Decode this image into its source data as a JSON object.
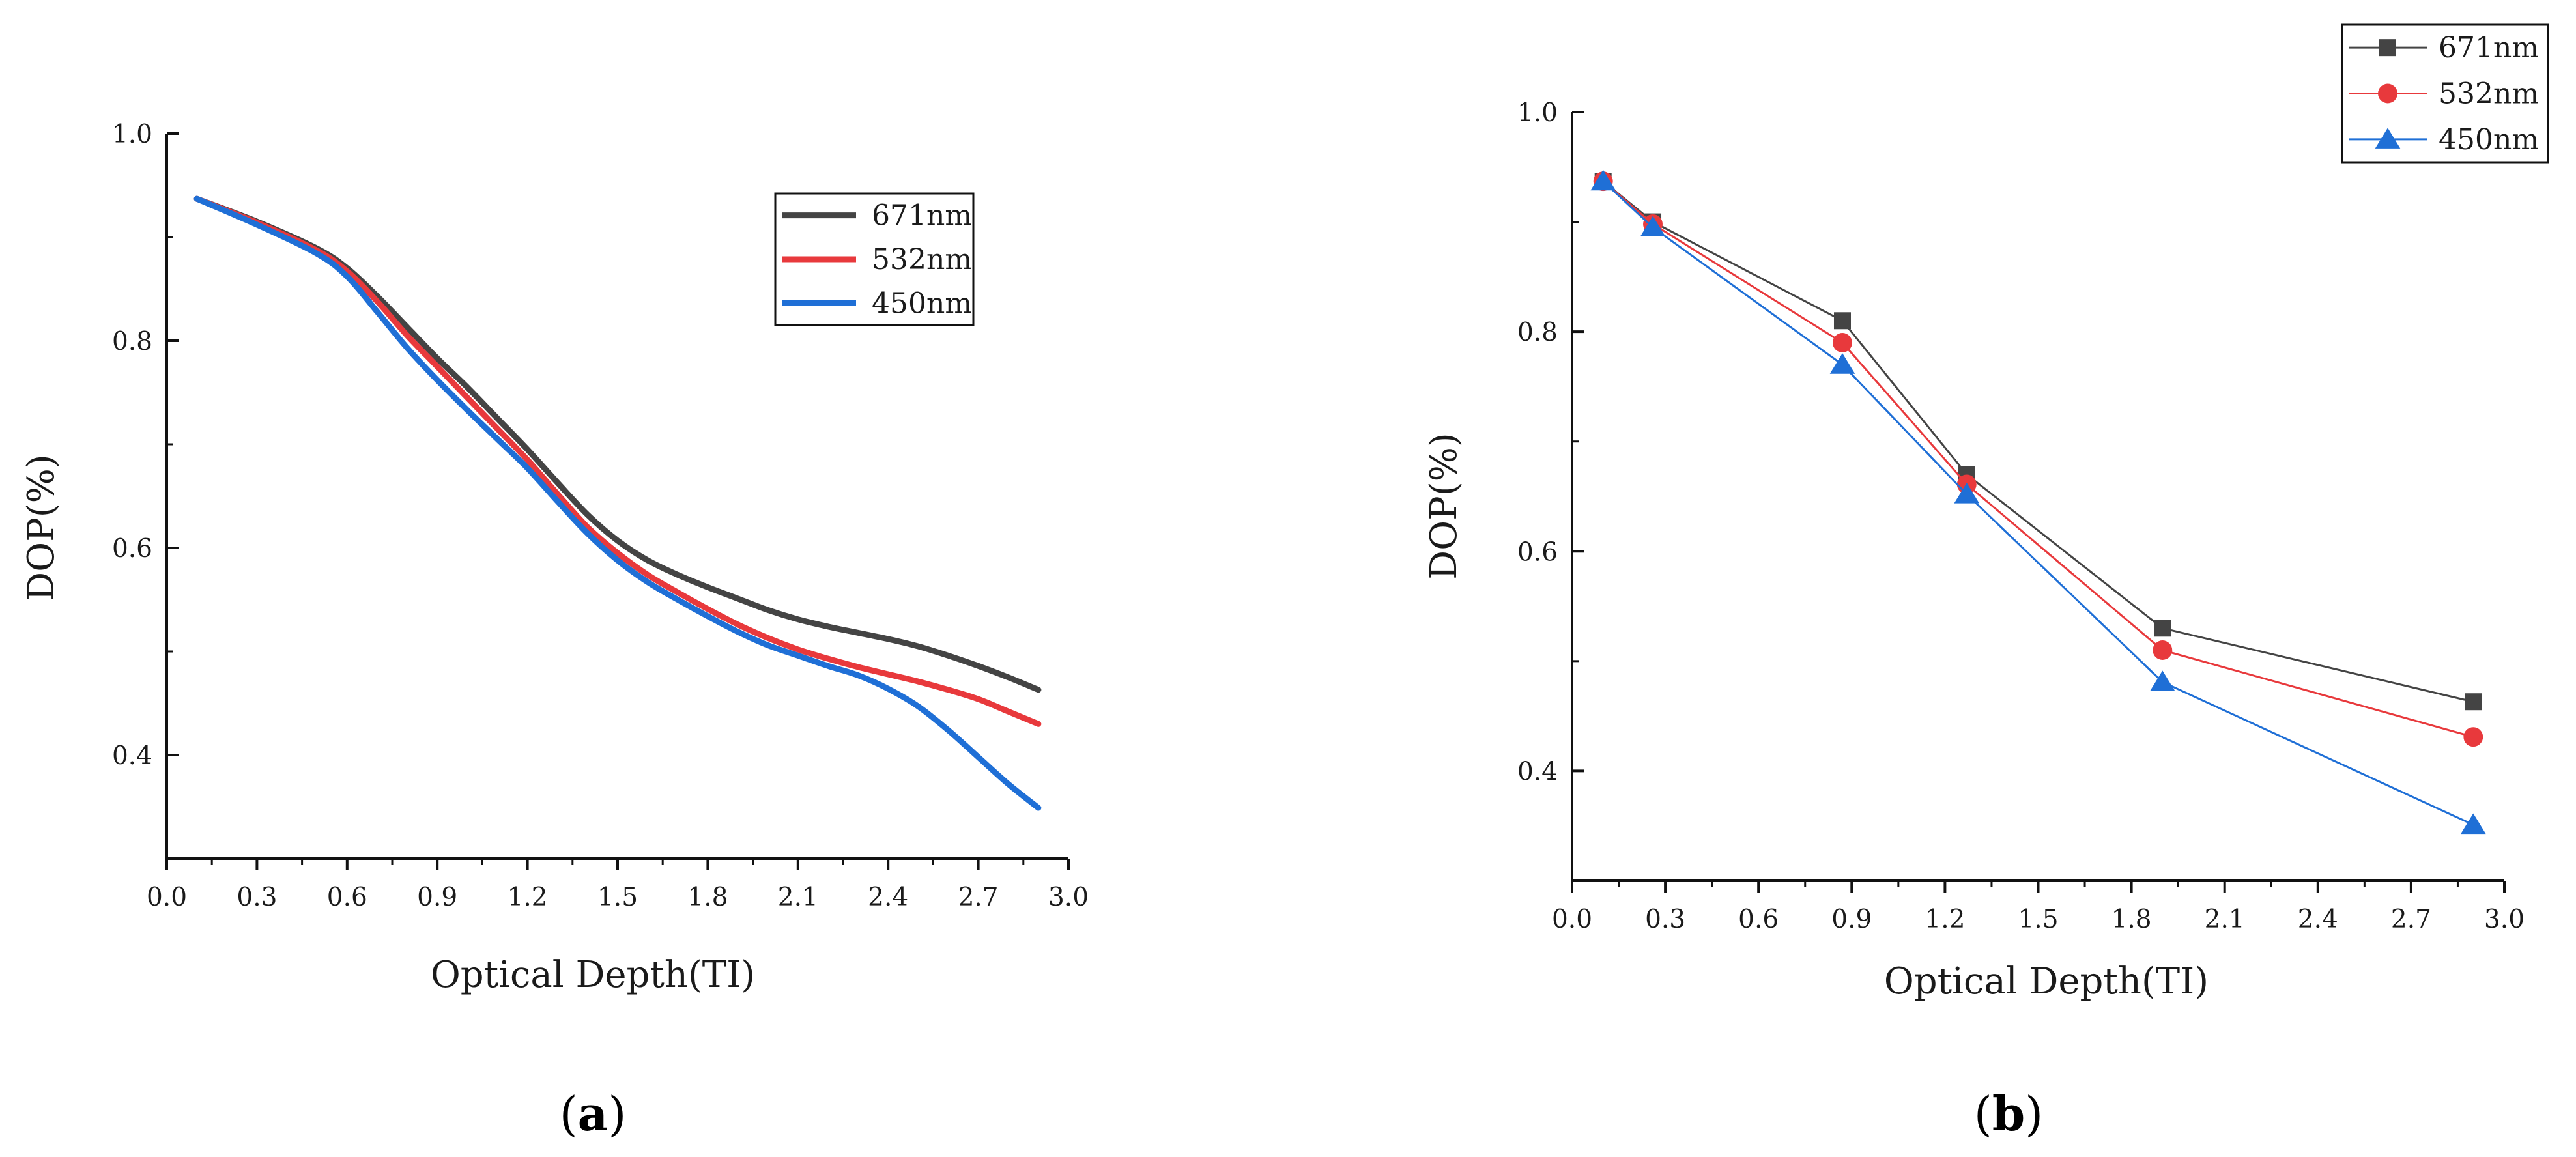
{
  "chart_data": [
    {
      "panel": "(a)",
      "panel_open": "(",
      "panel_letter": "a",
      "panel_close": ")",
      "type": "line",
      "style": "smooth",
      "title": "",
      "xlabel": "Optical Depth(TI)",
      "ylabel": "DOP(%)",
      "xlim": [
        0.0,
        3.0
      ],
      "ylim": [
        0.3,
        1.0
      ],
      "xticks": [
        "0.0",
        "0.3",
        "0.6",
        "0.9",
        "1.2",
        "1.5",
        "1.8",
        "2.1",
        "2.4",
        "2.7",
        "3.0"
      ],
      "yticks": [
        "0.4",
        "0.6",
        "0.8",
        "1.0"
      ],
      "legend_position": "top-right",
      "series": [
        {
          "name": "671nm",
          "color": "#444444",
          "x": [
            0.1,
            0.3,
            0.5,
            0.6,
            0.7,
            0.8,
            0.9,
            1.0,
            1.1,
            1.2,
            1.3,
            1.4,
            1.5,
            1.6,
            1.7,
            1.8,
            1.9,
            2.0,
            2.1,
            2.2,
            2.3,
            2.4,
            2.5,
            2.6,
            2.7,
            2.8,
            2.9
          ],
          "values": [
            0.937,
            0.915,
            0.889,
            0.87,
            0.843,
            0.813,
            0.783,
            0.755,
            0.725,
            0.695,
            0.663,
            0.632,
            0.607,
            0.588,
            0.574,
            0.562,
            0.551,
            0.54,
            0.531,
            0.524,
            0.518,
            0.512,
            0.505,
            0.496,
            0.486,
            0.475,
            0.463
          ]
        },
        {
          "name": "532nm",
          "color": "#e8393c",
          "x": [
            0.1,
            0.3,
            0.5,
            0.6,
            0.7,
            0.8,
            0.9,
            1.0,
            1.1,
            1.2,
            1.3,
            1.4,
            1.5,
            1.6,
            1.7,
            1.8,
            1.9,
            2.0,
            2.1,
            2.2,
            2.3,
            2.4,
            2.5,
            2.6,
            2.7,
            2.8,
            2.9
          ],
          "values": [
            0.937,
            0.914,
            0.887,
            0.867,
            0.838,
            0.805,
            0.775,
            0.745,
            0.715,
            0.685,
            0.652,
            0.62,
            0.595,
            0.574,
            0.557,
            0.541,
            0.526,
            0.513,
            0.502,
            0.493,
            0.485,
            0.478,
            0.471,
            0.463,
            0.454,
            0.442,
            0.43
          ]
        },
        {
          "name": "450nm",
          "color": "#1f6fd6",
          "x": [
            0.1,
            0.3,
            0.5,
            0.6,
            0.7,
            0.8,
            0.9,
            1.0,
            1.1,
            1.2,
            1.3,
            1.4,
            1.5,
            1.6,
            1.7,
            1.8,
            1.9,
            2.0,
            2.1,
            2.2,
            2.3,
            2.4,
            2.5,
            2.6,
            2.7,
            2.8,
            2.9
          ],
          "values": [
            0.937,
            0.912,
            0.884,
            0.862,
            0.828,
            0.793,
            0.762,
            0.733,
            0.705,
            0.677,
            0.645,
            0.614,
            0.588,
            0.567,
            0.55,
            0.534,
            0.519,
            0.506,
            0.496,
            0.486,
            0.477,
            0.464,
            0.447,
            0.424,
            0.398,
            0.372,
            0.349
          ]
        }
      ]
    },
    {
      "panel": "(b)",
      "panel_open": "(",
      "panel_letter": "b",
      "panel_close": ")",
      "type": "line",
      "style": "markers",
      "title": "",
      "xlabel": "Optical Depth(TI)",
      "ylabel": "DOP(%)",
      "xlim": [
        0.0,
        3.0
      ],
      "ylim": [
        0.3,
        1.0
      ],
      "xticks": [
        "0.0",
        "0.3",
        "0.6",
        "0.9",
        "1.2",
        "1.5",
        "1.8",
        "2.1",
        "2.4",
        "2.7",
        "3.0"
      ],
      "yticks": [
        "0.4",
        "0.6",
        "0.8",
        "1.0"
      ],
      "legend_position": "top-right",
      "categories": [
        0.1,
        0.26,
        0.87,
        1.27,
        1.9,
        2.9
      ],
      "series": [
        {
          "name": "671nm",
          "color": "#444444",
          "marker": "square",
          "values": [
            0.937,
            0.9,
            0.81,
            0.67,
            0.53,
            0.463
          ]
        },
        {
          "name": "532nm",
          "color": "#e8393c",
          "marker": "circle",
          "values": [
            0.937,
            0.898,
            0.79,
            0.661,
            0.51,
            0.431
          ]
        },
        {
          "name": "450nm",
          "color": "#1f6fd6",
          "marker": "triangle",
          "values": [
            0.937,
            0.895,
            0.77,
            0.652,
            0.481,
            0.351
          ]
        }
      ]
    }
  ]
}
